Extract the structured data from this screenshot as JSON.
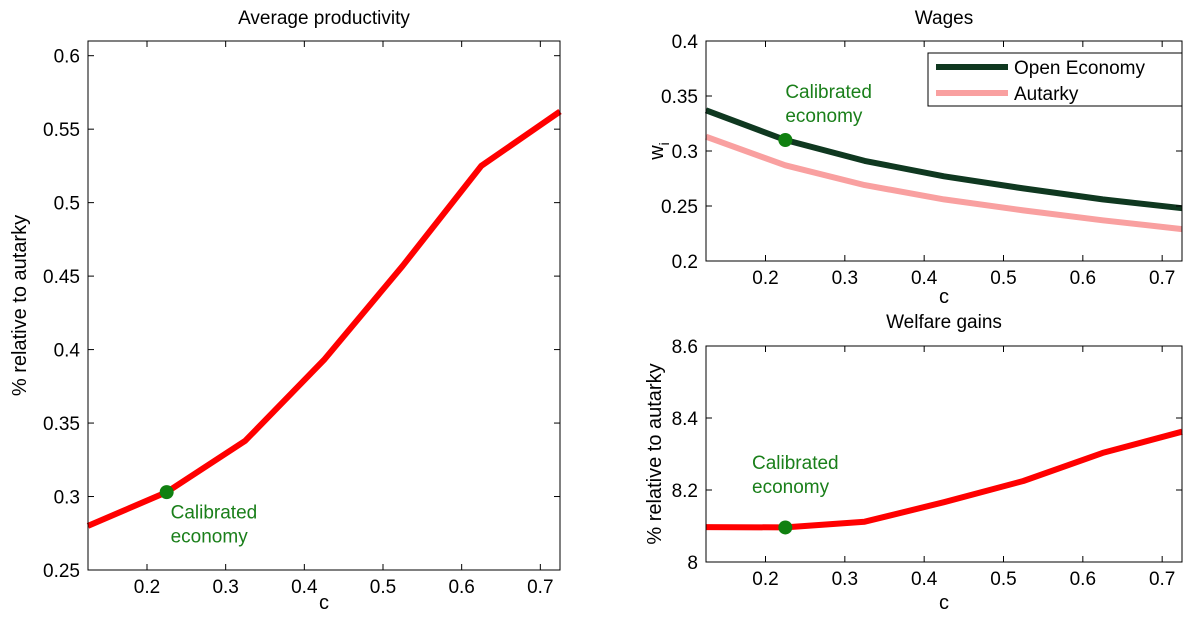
{
  "chart_data": [
    {
      "type": "line",
      "title": "Average productivity",
      "xlabel": "c",
      "ylabel": "% relative to autarky",
      "xlim": [
        0.125,
        0.725
      ],
      "ylim": [
        0.25,
        0.61
      ],
      "xticks": [
        "0.2",
        "0.3",
        "0.4",
        "0.5",
        "0.6",
        "0.7"
      ],
      "yticks": [
        "0.25",
        "0.3",
        "0.35",
        "0.4",
        "0.45",
        "0.5",
        "0.55",
        "0.6"
      ],
      "x": [
        0.125,
        0.225,
        0.325,
        0.425,
        0.525,
        0.625,
        0.725
      ],
      "series": [
        {
          "values": [
            0.28,
            0.303,
            0.338,
            0.393,
            0.457,
            0.525,
            0.562
          ],
          "color": "#ff0000"
        }
      ],
      "marker": {
        "x": 0.225,
        "y": 0.303,
        "color": "#108010"
      },
      "annotation": [
        "Calibrated",
        "economy"
      ],
      "grid": false
    },
    {
      "type": "line",
      "title": "Wages",
      "xlabel": "c",
      "ylabel": "w",
      "ylabel_sub": "i",
      "xlim": [
        0.125,
        0.725
      ],
      "ylim": [
        0.2,
        0.4
      ],
      "xticks": [
        "0.2",
        "0.3",
        "0.4",
        "0.5",
        "0.6",
        "0.7"
      ],
      "yticks": [
        "0.2",
        "0.25",
        "0.3",
        "0.35",
        "0.4"
      ],
      "x": [
        0.125,
        0.225,
        0.325,
        0.425,
        0.525,
        0.625,
        0.725
      ],
      "series": [
        {
          "name": "Open Economy",
          "values": [
            0.337,
            0.31,
            0.291,
            0.277,
            0.266,
            0.256,
            0.248
          ],
          "color": "#0f3820"
        },
        {
          "name": "Autarky",
          "values": [
            0.313,
            0.287,
            0.269,
            0.256,
            0.246,
            0.237,
            0.229
          ],
          "color": "#f9a0a0"
        }
      ],
      "marker": {
        "x": 0.225,
        "y": 0.31,
        "color": "#108010"
      },
      "annotation": [
        "Calibrated",
        "economy"
      ],
      "legend": "top-right",
      "grid": false
    },
    {
      "type": "line",
      "title": "Welfare gains",
      "xlabel": "c",
      "ylabel": "% relative to autarky",
      "xlim": [
        0.125,
        0.725
      ],
      "ylim": [
        8.0,
        8.6
      ],
      "xticks": [
        "0.2",
        "0.3",
        "0.4",
        "0.5",
        "0.6",
        "0.7"
      ],
      "yticks": [
        "8",
        "8.2",
        "8.4",
        "8.6"
      ],
      "x": [
        0.125,
        0.225,
        0.325,
        0.425,
        0.525,
        0.625,
        0.725
      ],
      "series": [
        {
          "values": [
            8.097,
            8.096,
            8.112,
            8.166,
            8.225,
            8.303,
            8.362
          ],
          "color": "#ff0000"
        }
      ],
      "marker": {
        "x": 0.225,
        "y": 8.096,
        "color": "#108010"
      },
      "annotation": [
        "Calibrated",
        "economy"
      ],
      "grid": false
    }
  ]
}
